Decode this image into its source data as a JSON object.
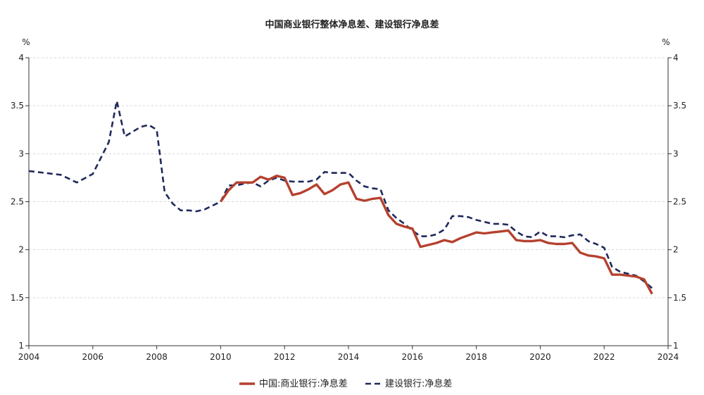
{
  "chart_data": {
    "type": "line",
    "title": "中国商业银行整体净息差、建设银行净息差",
    "ylabel_left": "%",
    "ylabel_right": "%",
    "xlim": [
      2004,
      2024
    ],
    "ylim": [
      1,
      4
    ],
    "x_ticks": [
      "2004",
      "2006",
      "2008",
      "2010",
      "2012",
      "2014",
      "2016",
      "2018",
      "2020",
      "2022",
      "2024"
    ],
    "y_ticks": [
      "1",
      "1.5",
      "2",
      "2.5",
      "3",
      "3.5",
      "4"
    ],
    "grid": true,
    "legend_position": "bottom",
    "series": [
      {
        "name": "中国:商业银行:净息差",
        "color": "#b5412f",
        "style": "solid",
        "points": [
          [
            2010.0,
            2.5
          ],
          [
            2010.25,
            2.62
          ],
          [
            2010.5,
            2.7
          ],
          [
            2010.75,
            2.7
          ],
          [
            2011.0,
            2.7
          ],
          [
            2011.25,
            2.76
          ],
          [
            2011.5,
            2.73
          ],
          [
            2011.75,
            2.77
          ],
          [
            2012.0,
            2.75
          ],
          [
            2012.25,
            2.57
          ],
          [
            2012.5,
            2.59
          ],
          [
            2012.75,
            2.63
          ],
          [
            2013.0,
            2.68
          ],
          [
            2013.25,
            2.58
          ],
          [
            2013.5,
            2.62
          ],
          [
            2013.75,
            2.68
          ],
          [
            2014.0,
            2.7
          ],
          [
            2014.25,
            2.53
          ],
          [
            2014.5,
            2.51
          ],
          [
            2014.75,
            2.53
          ],
          [
            2015.0,
            2.54
          ],
          [
            2015.25,
            2.36
          ],
          [
            2015.5,
            2.27
          ],
          [
            2015.75,
            2.24
          ],
          [
            2016.0,
            2.22
          ],
          [
            2016.25,
            2.03
          ],
          [
            2016.5,
            2.05
          ],
          [
            2016.75,
            2.07
          ],
          [
            2017.0,
            2.1
          ],
          [
            2017.25,
            2.08
          ],
          [
            2017.5,
            2.12
          ],
          [
            2017.75,
            2.15
          ],
          [
            2018.0,
            2.18
          ],
          [
            2018.25,
            2.17
          ],
          [
            2018.5,
            2.18
          ],
          [
            2018.75,
            2.19
          ],
          [
            2019.0,
            2.2
          ],
          [
            2019.25,
            2.1
          ],
          [
            2019.5,
            2.09
          ],
          [
            2019.75,
            2.09
          ],
          [
            2020.0,
            2.1
          ],
          [
            2020.25,
            2.07
          ],
          [
            2020.5,
            2.06
          ],
          [
            2020.75,
            2.06
          ],
          [
            2021.0,
            2.07
          ],
          [
            2021.25,
            1.97
          ],
          [
            2021.5,
            1.94
          ],
          [
            2021.75,
            1.93
          ],
          [
            2022.0,
            1.91
          ],
          [
            2022.25,
            1.74
          ],
          [
            2022.5,
            1.74
          ],
          [
            2022.75,
            1.73
          ],
          [
            2023.0,
            1.72
          ],
          [
            2023.25,
            1.69
          ],
          [
            2023.5,
            1.54
          ]
        ]
      },
      {
        "name": "建设银行:净息差",
        "color": "#1f2a5c",
        "style": "dashed",
        "points": [
          [
            2004.0,
            2.82
          ],
          [
            2005.0,
            2.78
          ],
          [
            2005.5,
            2.7
          ],
          [
            2006.0,
            2.79
          ],
          [
            2006.5,
            3.12
          ],
          [
            2006.75,
            3.55
          ],
          [
            2007.0,
            3.18
          ],
          [
            2007.5,
            3.28
          ],
          [
            2007.75,
            3.3
          ],
          [
            2008.0,
            3.25
          ],
          [
            2008.25,
            2.6
          ],
          [
            2008.5,
            2.48
          ],
          [
            2008.75,
            2.41
          ],
          [
            2009.0,
            2.41
          ],
          [
            2009.25,
            2.4
          ],
          [
            2009.5,
            2.42
          ],
          [
            2010.0,
            2.5
          ],
          [
            2010.25,
            2.67
          ],
          [
            2010.5,
            2.67
          ],
          [
            2010.75,
            2.69
          ],
          [
            2011.0,
            2.7
          ],
          [
            2011.25,
            2.66
          ],
          [
            2011.5,
            2.72
          ],
          [
            2011.75,
            2.75
          ],
          [
            2012.0,
            2.72
          ],
          [
            2012.25,
            2.71
          ],
          [
            2012.5,
            2.71
          ],
          [
            2012.75,
            2.71
          ],
          [
            2013.0,
            2.73
          ],
          [
            2013.25,
            2.81
          ],
          [
            2013.5,
            2.8
          ],
          [
            2013.75,
            2.8
          ],
          [
            2014.0,
            2.8
          ],
          [
            2014.25,
            2.72
          ],
          [
            2014.5,
            2.66
          ],
          [
            2014.75,
            2.64
          ],
          [
            2015.0,
            2.63
          ],
          [
            2015.25,
            2.41
          ],
          [
            2015.5,
            2.33
          ],
          [
            2015.75,
            2.27
          ],
          [
            2016.0,
            2.2
          ],
          [
            2016.25,
            2.14
          ],
          [
            2016.5,
            2.14
          ],
          [
            2016.75,
            2.16
          ],
          [
            2017.0,
            2.21
          ],
          [
            2017.25,
            2.35
          ],
          [
            2017.5,
            2.35
          ],
          [
            2017.75,
            2.34
          ],
          [
            2018.0,
            2.31
          ],
          [
            2018.25,
            2.29
          ],
          [
            2018.5,
            2.27
          ],
          [
            2018.75,
            2.27
          ],
          [
            2019.0,
            2.26
          ],
          [
            2019.25,
            2.19
          ],
          [
            2019.5,
            2.14
          ],
          [
            2019.75,
            2.13
          ],
          [
            2020.0,
            2.19
          ],
          [
            2020.25,
            2.14
          ],
          [
            2020.5,
            2.14
          ],
          [
            2020.75,
            2.13
          ],
          [
            2021.0,
            2.15
          ],
          [
            2021.25,
            2.16
          ],
          [
            2021.5,
            2.09
          ],
          [
            2021.75,
            2.06
          ],
          [
            2022.0,
            2.02
          ],
          [
            2022.25,
            1.82
          ],
          [
            2022.5,
            1.77
          ],
          [
            2022.75,
            1.75
          ],
          [
            2023.0,
            1.73
          ],
          [
            2023.25,
            1.67
          ],
          [
            2023.5,
            1.6
          ]
        ]
      }
    ]
  }
}
